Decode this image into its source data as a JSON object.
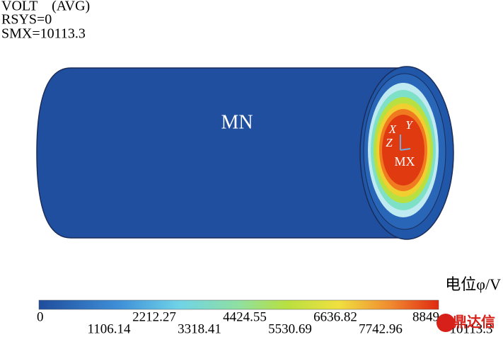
{
  "header": {
    "lines": [
      "VOLT    (AVG)",
      "RSYS=0",
      "SMX=10113.3"
    ]
  },
  "model": {
    "min_label": "MN",
    "max_label": "MX",
    "axes": [
      "X",
      "Y",
      "Z"
    ]
  },
  "legend": {
    "title": "电位φ/V",
    "ticks": [
      "0",
      "1106.14",
      "2212.27",
      "3318.41",
      "4424.55",
      "5530.69",
      "6636.82",
      "7742.96",
      "8849",
      "10113.3"
    ]
  },
  "watermark": "鼎达信"
}
